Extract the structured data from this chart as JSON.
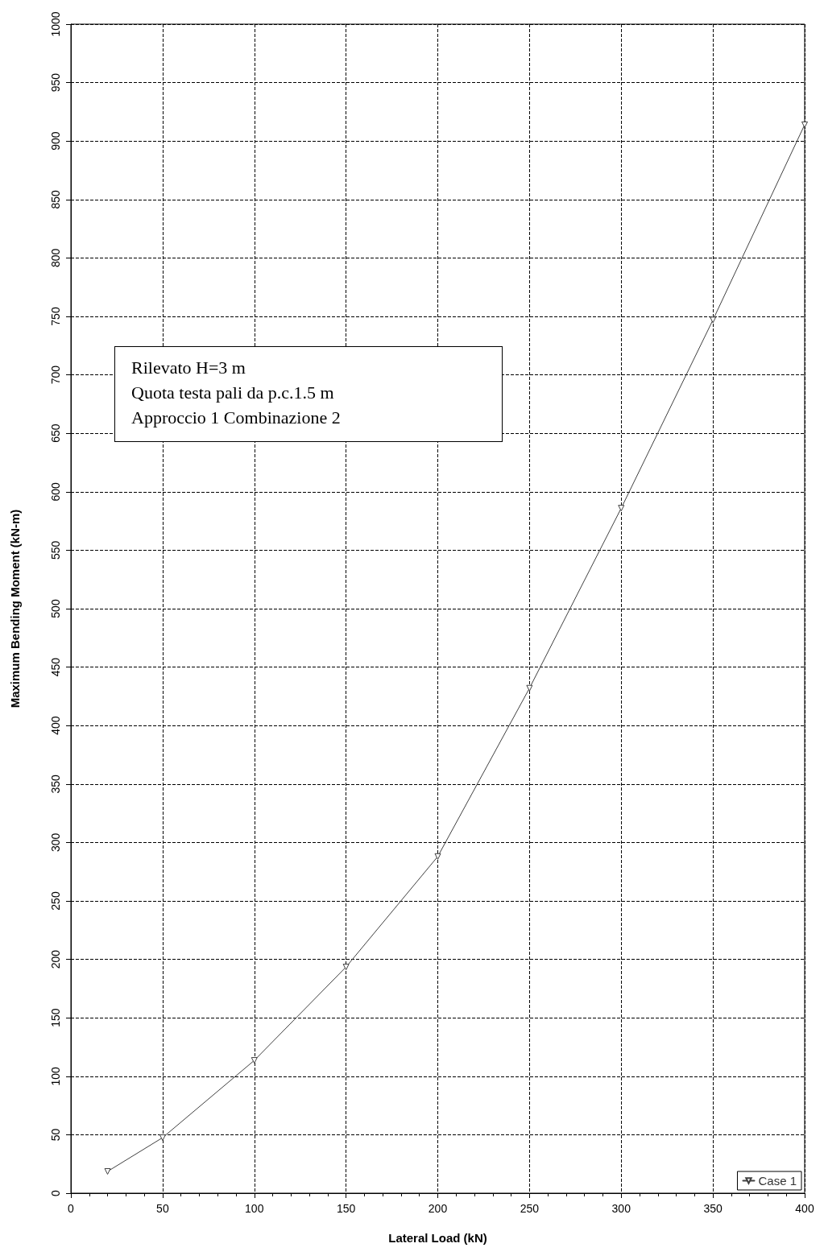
{
  "chart_data": {
    "type": "line",
    "xlabel": "Lateral Load (kN)",
    "ylabel": "Maximum Bending Moment (kN-m)",
    "x": [
      20,
      50,
      100,
      150,
      200,
      250,
      300,
      350,
      400
    ],
    "series": [
      {
        "name": "Case 1",
        "color": "#404040",
        "values": [
          18.6,
          47.5,
          113.6,
          193.5,
          288,
          432,
          586,
          747,
          914
        ]
      }
    ],
    "xlim": [
      0,
      400
    ],
    "xticks": [
      0,
      50,
      100,
      150,
      200,
      250,
      300,
      350,
      400
    ],
    "ylim": [
      0,
      1000
    ],
    "yticks": [
      0,
      50,
      100,
      150,
      200,
      250,
      300,
      350,
      400,
      450,
      500,
      550,
      600,
      650,
      700,
      750,
      800,
      850,
      900,
      950,
      1000
    ],
    "grid": true,
    "legend": "bottom right",
    "marker": "triangle",
    "line_style": "solid",
    "annotations": [
      "Rilevato H=3 m",
      "Quota testa pali da p.c.1.5 m",
      "Approccio 1 Combinazione 2"
    ]
  }
}
